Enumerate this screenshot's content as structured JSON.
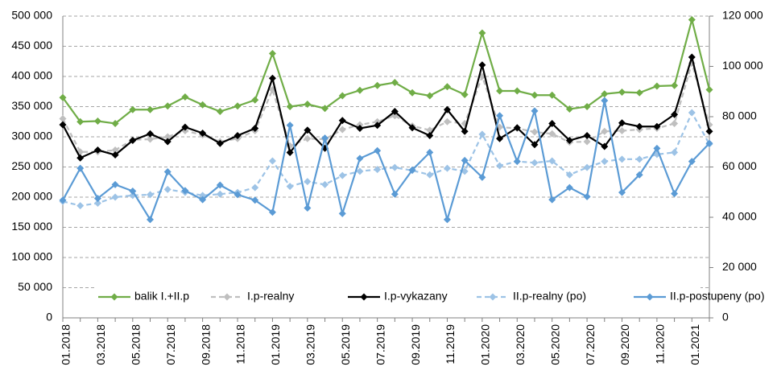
{
  "chart_data": {
    "type": "line",
    "categories": [
      "01.2018",
      null,
      "03.2018",
      null,
      "05.2018",
      null,
      "07.2018",
      null,
      "09.2018",
      null,
      "11.2018",
      null,
      "01.2019",
      null,
      "03.2019",
      null,
      "05.2019",
      null,
      "07.2019",
      null,
      "09.2019",
      null,
      "11.2019",
      null,
      "01.2020",
      null,
      "03.2020",
      null,
      "05.2020",
      null,
      "07.2020",
      null,
      "09.2020",
      null,
      "11.2020",
      null,
      "01.2021",
      null
    ],
    "series": [
      {
        "name": "balik I.+II.p",
        "color": "#70ad47",
        "dash": false,
        "values": [
          365000,
          325000,
          326000,
          322000,
          345000,
          345000,
          351000,
          366000,
          353000,
          342000,
          351000,
          361000,
          438000,
          350000,
          354000,
          347000,
          368000,
          377000,
          385000,
          390000,
          373000,
          368000,
          383000,
          370000,
          472000,
          376000,
          376000,
          369000,
          369000,
          346000,
          350000,
          371000,
          374000,
          373000,
          384000,
          385000,
          494000,
          378000
        ]
      },
      {
        "name": "I.p-realny",
        "color": "#bfbfbf",
        "dash": true,
        "values": [
          330000,
          275000,
          275000,
          278000,
          295000,
          296000,
          300000,
          310000,
          303000,
          292000,
          297000,
          310000,
          378000,
          285000,
          297000,
          296000,
          312000,
          320000,
          325000,
          335000,
          318000,
          311000,
          325000,
          322000,
          400000,
          316000,
          314000,
          308000,
          305000,
          291000,
          292000,
          309000,
          310000,
          312000,
          314000,
          322000,
          422000,
          320000
        ]
      },
      {
        "name": "I.p-vykazany",
        "color": "#000000",
        "dash": false,
        "values": [
          320000,
          265000,
          278000,
          270000,
          294000,
          305000,
          292000,
          316000,
          306000,
          289000,
          302000,
          314000,
          397000,
          274000,
          311000,
          281000,
          327000,
          314000,
          319000,
          342000,
          315000,
          302000,
          345000,
          309000,
          419000,
          297000,
          315000,
          287000,
          322000,
          294000,
          302000,
          284000,
          323000,
          317000,
          317000,
          337000,
          432000,
          309000
        ]
      },
      {
        "name": "II.p-realny (po)",
        "color": "#9dc3e6",
        "dash": true,
        "axis": "y2",
        "values": [
          46300,
          44600,
          45600,
          48000,
          48700,
          49000,
          51100,
          49900,
          48700,
          49200,
          49900,
          51800,
          62400,
          52300,
          54200,
          53000,
          56600,
          58300,
          59000,
          59800,
          58600,
          56900,
          59500,
          58300,
          73000,
          60500,
          62200,
          61700,
          62400,
          56900,
          59800,
          62200,
          63100,
          63100,
          65000,
          65800,
          81600,
          69100
        ]
      },
      {
        "name": "II.p-postupeny (po)",
        "color": "#5b9bd5",
        "dash": false,
        "axis": "y2",
        "values": [
          46800,
          59500,
          47500,
          53000,
          50400,
          39100,
          58100,
          50600,
          47000,
          52800,
          49000,
          46800,
          42000,
          76600,
          43700,
          71500,
          41500,
          63400,
          66500,
          49200,
          58800,
          65800,
          39100,
          62600,
          55900,
          80400,
          62200,
          82300,
          47000,
          51800,
          48200,
          86400,
          49900,
          56900,
          67400,
          49400,
          62200,
          69400
        ]
      }
    ],
    "ylim": [
      0,
      500000
    ],
    "yticks": [
      {
        "value": 0,
        "label": "0"
      },
      {
        "value": 50000,
        "label": "50 000"
      },
      {
        "value": 100000,
        "label": "100 000"
      },
      {
        "value": 150000,
        "label": "150 000"
      },
      {
        "value": 200000,
        "label": "200 000"
      },
      {
        "value": 250000,
        "label": "250 000"
      },
      {
        "value": 300000,
        "label": "300 000"
      },
      {
        "value": 350000,
        "label": "350 000"
      },
      {
        "value": 400000,
        "label": "400 000"
      },
      {
        "value": 450000,
        "label": "450 000"
      },
      {
        "value": 500000,
        "label": "500 000"
      }
    ],
    "y2lim": [
      0,
      120000
    ],
    "y2ticks": [
      {
        "value": 0,
        "label": "0"
      },
      {
        "value": 20000,
        "label": "20 000"
      },
      {
        "value": 40000,
        "label": "40 000"
      },
      {
        "value": 60000,
        "label": "60 000"
      },
      {
        "value": 80000,
        "label": "80 000"
      },
      {
        "value": 100000,
        "label": "100 000"
      },
      {
        "value": 120000,
        "label": "120 000"
      }
    ],
    "grid": true,
    "legend": "bottom"
  }
}
